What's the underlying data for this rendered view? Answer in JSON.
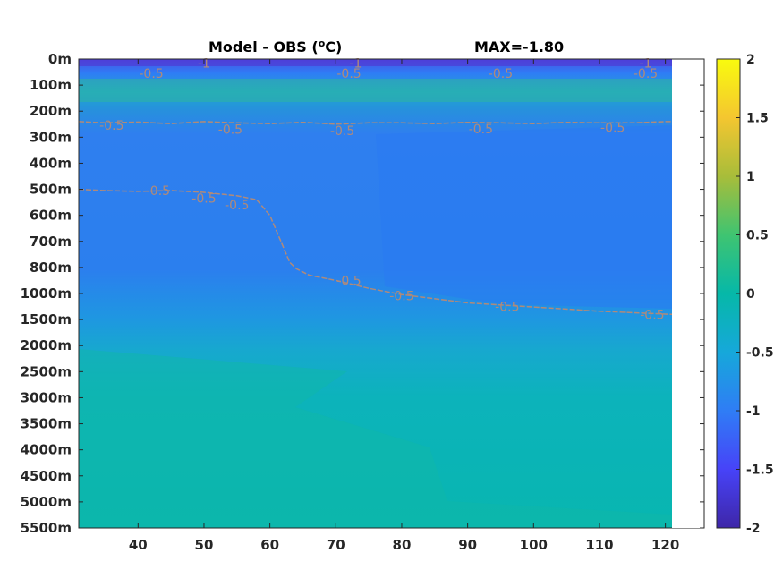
{
  "chart_data": {
    "type": "heatmap",
    "title": "Model - OBS (",
    "title_sup": "o",
    "title_suffix": "C)",
    "max_label": "MAX=-1.80",
    "x": {
      "ticks": [
        40,
        50,
        60,
        70,
        80,
        90,
        100,
        110,
        120
      ],
      "range": [
        31,
        122
      ]
    },
    "y": {
      "ticks": [
        "0m",
        "100m",
        "200m",
        "300m",
        "400m",
        "500m",
        "600m",
        "700m",
        "800m",
        "1000m",
        "1500m",
        "2000m",
        "2500m",
        "3000m",
        "3500m",
        "4000m",
        "4500m",
        "5000m",
        "5500m"
      ]
    },
    "colorbar": {
      "range": [
        -2,
        2
      ],
      "ticks": [
        "2",
        "1.5",
        "1",
        "0.5",
        "0",
        "-0.5",
        "-1",
        "-1.5",
        "-2"
      ],
      "colors": [
        "#3e26a8",
        "#4743f8",
        "#2f7df5",
        "#16a8da",
        "#06b8a8",
        "#3fc471",
        "#a8bd3a",
        "#f4c630",
        "#f9fb0e"
      ]
    },
    "contours": [
      {
        "level": "-0.5",
        "x": [
          31,
          35,
          40,
          45,
          50,
          55,
          60,
          65,
          70,
          75,
          80,
          85,
          90,
          95,
          100,
          105,
          110,
          115,
          120,
          121
        ],
        "y": [
          240,
          245,
          242,
          248,
          240,
          245,
          248,
          243,
          250,
          245,
          245,
          248,
          243,
          245,
          248,
          243,
          245,
          245,
          240,
          240
        ]
      },
      {
        "level": "-0.5",
        "x": [
          31,
          35,
          40,
          45,
          50,
          55,
          58,
          60,
          61,
          62,
          63,
          64,
          66,
          70,
          75,
          80,
          90,
          100,
          110,
          121
        ],
        "y": [
          500,
          505,
          508,
          505,
          512,
          525,
          540,
          600,
          660,
          720,
          780,
          810,
          860,
          900,
          960,
          1020,
          1180,
          1260,
          1340,
          1400
        ]
      }
    ],
    "contour_labels": [
      {
        "text": "-0.5",
        "x": 36,
        "y": 255
      },
      {
        "text": "-0.5",
        "x": 54,
        "y": 270
      },
      {
        "text": "-0.5",
        "x": 71,
        "y": 275
      },
      {
        "text": "-0.5",
        "x": 92,
        "y": 268
      },
      {
        "text": "-0.5",
        "x": 112,
        "y": 262
      },
      {
        "text": "-0.5",
        "x": 43,
        "y": 505
      },
      {
        "text": "-0.5",
        "x": 50,
        "y": 535
      },
      {
        "text": "-0.5",
        "x": 55,
        "y": 560
      },
      {
        "text": "-0.5",
        "x": 72,
        "y": 900
      },
      {
        "text": "-0.5",
        "x": 80,
        "y": 1040
      },
      {
        "text": "-0.5",
        "x": 96,
        "y": 1250
      },
      {
        "text": "-0.5",
        "x": 118,
        "y": 1400
      },
      {
        "text": "-1",
        "x": 50,
        "y": 15
      },
      {
        "text": "-1",
        "x": 73,
        "y": 15
      },
      {
        "text": "-1",
        "x": 117,
        "y": 15
      },
      {
        "text": "-0.5",
        "x": 42,
        "y": 55
      },
      {
        "text": "-0.5",
        "x": 72,
        "y": 55
      },
      {
        "text": "-0.5",
        "x": 95,
        "y": 55
      },
      {
        "text": "-0.5",
        "x": 117,
        "y": 55
      }
    ]
  }
}
